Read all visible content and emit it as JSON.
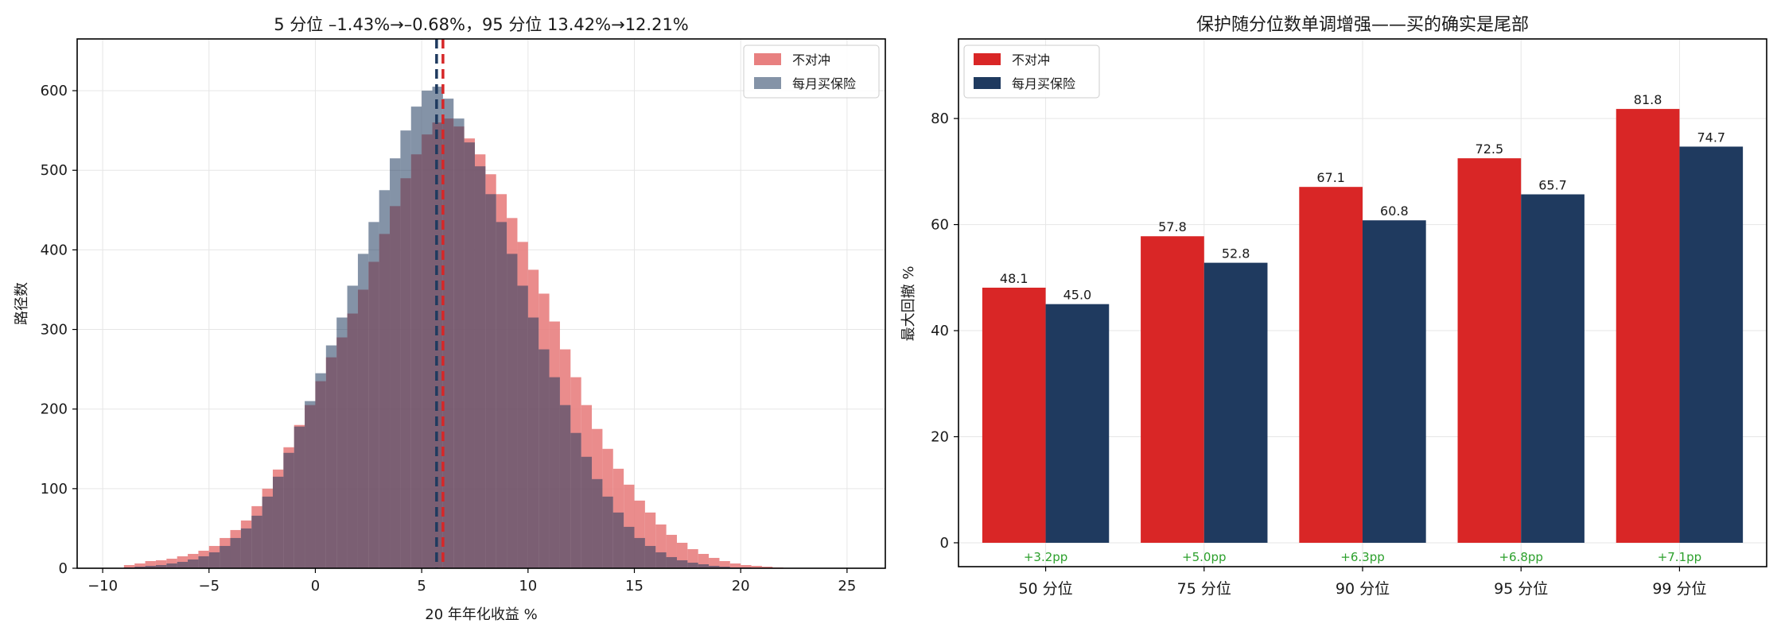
{
  "chart_data": [
    {
      "type": "histogram",
      "title": "5 分位 –1.43%→–0.68%，95 分位 13.42%→12.21%",
      "xlabel": "20 年年化收益 %",
      "ylabel": "路径数",
      "xlim": [
        -11.2,
        26.8
      ],
      "ylim": [
        0,
        665
      ],
      "xticks": [
        -10,
        -5,
        0,
        5,
        10,
        15,
        20,
        25
      ],
      "yticks": [
        0,
        100,
        200,
        300,
        400,
        500,
        600
      ],
      "xtick_labels": [
        "−10",
        "−5",
        "0",
        "5",
        "10",
        "15",
        "20",
        "25"
      ],
      "ytick_labels": [
        "0",
        "100",
        "200",
        "300",
        "400",
        "500",
        "600"
      ],
      "grid": true,
      "legend": "top-right",
      "bin_centers": [
        -8.75,
        -8.25,
        -7.75,
        -7.25,
        -6.75,
        -6.25,
        -5.75,
        -5.25,
        -4.75,
        -4.25,
        -3.75,
        -3.25,
        -2.75,
        -2.25,
        -1.75,
        -1.25,
        -0.75,
        -0.25,
        0.25,
        0.75,
        1.25,
        1.75,
        2.25,
        2.75,
        3.25,
        3.75,
        4.25,
        4.75,
        5.25,
        5.75,
        6.25,
        6.75,
        7.25,
        7.75,
        8.25,
        8.75,
        9.25,
        9.75,
        10.25,
        10.75,
        11.25,
        11.75,
        12.25,
        12.75,
        13.25,
        13.75,
        14.25,
        14.75,
        15.25,
        15.75,
        16.25,
        16.75,
        17.25,
        17.75,
        18.25,
        18.75,
        19.25,
        19.75,
        20.25,
        20.75,
        21.25,
        21.75
      ],
      "series": [
        {
          "name": "不对冲",
          "color": "#e88080",
          "values": [
            4,
            6,
            9,
            10,
            12,
            15,
            18,
            22,
            28,
            38,
            48,
            60,
            78,
            100,
            124,
            152,
            180,
            205,
            235,
            265,
            290,
            320,
            350,
            385,
            420,
            455,
            490,
            520,
            545,
            560,
            565,
            555,
            540,
            520,
            495,
            470,
            440,
            410,
            375,
            345,
            310,
            275,
            240,
            205,
            175,
            150,
            125,
            105,
            85,
            70,
            55,
            42,
            32,
            24,
            18,
            13,
            9,
            6,
            4,
            3,
            2,
            1
          ]
        },
        {
          "name": "每月买保险",
          "color": "#1f3a5f",
          "values": [
            1,
            2,
            3,
            4,
            6,
            8,
            11,
            15,
            20,
            28,
            38,
            50,
            66,
            90,
            115,
            145,
            178,
            210,
            245,
            280,
            315,
            355,
            395,
            435,
            475,
            515,
            550,
            580,
            600,
            605,
            590,
            565,
            535,
            505,
            470,
            435,
            395,
            355,
            315,
            275,
            240,
            205,
            170,
            140,
            112,
            90,
            70,
            52,
            38,
            28,
            20,
            14,
            10,
            7,
            5,
            3,
            2,
            1,
            1,
            0,
            0,
            0
          ]
        }
      ],
      "vlines": [
        {
          "series": "不对冲",
          "x": 6.0,
          "color": "#d62728"
        },
        {
          "series": "每月买保险",
          "x": 5.7,
          "color": "#1f3a5f"
        }
      ]
    },
    {
      "type": "bar",
      "title": "保护随分位数单调增强——买的确实是尾部",
      "ylabel": "最大回撤 %",
      "xlabel": "",
      "categories": [
        "50 分位",
        "75 分位",
        "90 分位",
        "95 分位",
        "99 分位"
      ],
      "ylim": [
        -4.5,
        95
      ],
      "yticks": [
        0,
        20,
        40,
        60,
        80
      ],
      "grid": true,
      "legend": "top-left",
      "series": [
        {
          "name": "不对冲",
          "color": "#d92626",
          "values": [
            48.1,
            57.8,
            67.1,
            72.5,
            81.8
          ]
        },
        {
          "name": "每月买保险",
          "color": "#1f3a5f",
          "values": [
            45.0,
            52.8,
            60.8,
            65.7,
            74.7
          ]
        }
      ],
      "annotations": [
        "+3.2pp",
        "+5.0pp",
        "+6.3pp",
        "+6.8pp",
        "+7.1pp"
      ],
      "annotation_color": "#2ca02c"
    }
  ]
}
